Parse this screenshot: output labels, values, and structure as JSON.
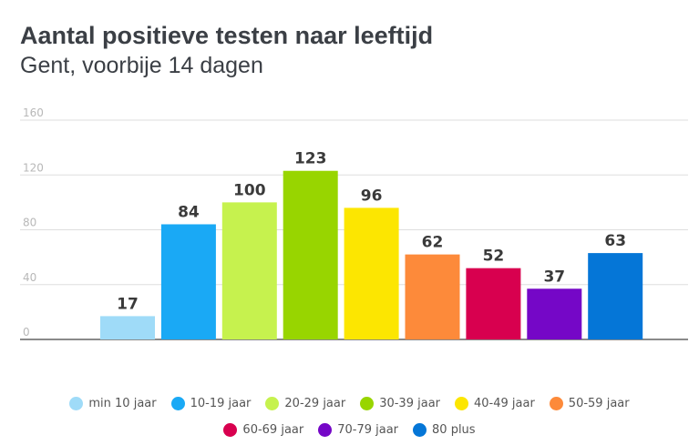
{
  "chart_data": {
    "type": "bar",
    "title": "Aantal positieve testen naar leeftijd",
    "subtitle": "Gent, voorbije 14 dagen",
    "categories": [
      "min 10 jaar",
      "10-19 jaar",
      "20-29 jaar",
      "30-39 jaar",
      "40-49 jaar",
      "50-59 jaar",
      "60-69 jaar",
      "70-79 jaar",
      "80 plus"
    ],
    "values": [
      17,
      84,
      100,
      123,
      96,
      62,
      52,
      37,
      63
    ],
    "value_labels": [
      "17",
      "84",
      "100",
      "123",
      "96",
      "62",
      "52",
      "37",
      "63"
    ],
    "colors": [
      "#9fdbf8",
      "#1aa9f5",
      "#c6f24e",
      "#98d500",
      "#fce601",
      "#fd8a3a",
      "#d8004f",
      "#7507c7",
      "#0576d7"
    ],
    "ylim": [
      0,
      160
    ],
    "yticks": [
      0,
      40,
      80,
      120,
      160
    ],
    "ytick_labels": [
      "0",
      "40",
      "80",
      "120",
      "160"
    ],
    "grid": true,
    "xlabel": "",
    "ylabel": "",
    "legend_position": "bottom"
  }
}
